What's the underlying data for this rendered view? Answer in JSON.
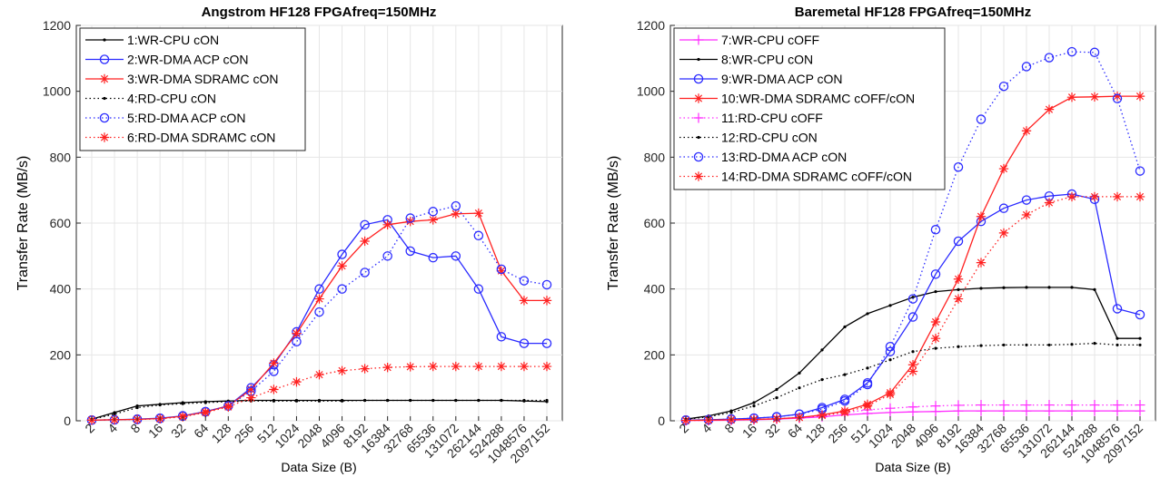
{
  "chart_data": [
    {
      "type": "line",
      "title": "Angstrom HF128 FPGAfreq=150MHz",
      "xlabel": "Data Size (B)",
      "ylabel": "Transfer Rate (MB/s)",
      "ylim": [
        0,
        1200
      ],
      "yticks": [
        0,
        200,
        400,
        600,
        800,
        1000,
        1200
      ],
      "grid": true,
      "legend_position": "top-left",
      "categories": [
        "2",
        "4",
        "8",
        "16",
        "32",
        "64",
        "128",
        "256",
        "512",
        "1024",
        "2048",
        "4096",
        "8192",
        "16384",
        "32768",
        "65536",
        "131072",
        "262144",
        "524288",
        "1048576",
        "2097152"
      ],
      "series": [
        {
          "name": "1:WR-CPU cON",
          "color": "#000000",
          "dash": "solid",
          "marker": "dot",
          "values": [
            5,
            25,
            45,
            50,
            55,
            58,
            60,
            62,
            62,
            62,
            62,
            62,
            62,
            62,
            62,
            62,
            62,
            62,
            62,
            60,
            58
          ]
        },
        {
          "name": "2:WR-DMA ACP cON",
          "color": "#2b2bff",
          "dash": "solid",
          "marker": "circle",
          "values": [
            2,
            3,
            5,
            8,
            15,
            28,
            45,
            100,
            170,
            270,
            400,
            505,
            595,
            610,
            515,
            495,
            500,
            400,
            255,
            235,
            235
          ]
        },
        {
          "name": "3:WR-DMA SDRAMC cON",
          "color": "#ff2020",
          "dash": "solid",
          "marker": "star",
          "values": [
            2,
            3,
            4,
            7,
            14,
            27,
            45,
            95,
            175,
            265,
            370,
            470,
            545,
            595,
            605,
            610,
            628,
            630,
            455,
            365,
            365
          ]
        },
        {
          "name": "4:RD-CPU cON",
          "color": "#000000",
          "dash": "dotted",
          "marker": "dot",
          "values": [
            4,
            20,
            40,
            48,
            52,
            55,
            58,
            60,
            60,
            60,
            60,
            60,
            62,
            62,
            62,
            62,
            62,
            62,
            62,
            62,
            62
          ]
        },
        {
          "name": "5:RD-DMA ACP cON",
          "color": "#2b2bff",
          "dash": "dotted",
          "marker": "circle",
          "values": [
            2,
            3,
            4,
            7,
            14,
            27,
            45,
            90,
            150,
            240,
            330,
            400,
            450,
            500,
            615,
            635,
            652,
            562,
            460,
            425,
            413
          ]
        },
        {
          "name": "6:RD-DMA SDRAMC cON",
          "color": "#ff2020",
          "dash": "dotted",
          "marker": "star",
          "values": [
            2,
            3,
            4,
            6,
            12,
            25,
            42,
            70,
            95,
            118,
            140,
            152,
            158,
            162,
            164,
            165,
            165,
            165,
            165,
            165,
            165
          ]
        }
      ]
    },
    {
      "type": "line",
      "title": "Baremetal HF128 FPGAfreq=150MHz",
      "xlabel": "Data Size (B)",
      "ylabel": "Transfer Rate (MB/s)",
      "ylim": [
        0,
        1200
      ],
      "yticks": [
        0,
        200,
        400,
        600,
        800,
        1000,
        1200
      ],
      "grid": true,
      "legend_position": "top-left",
      "categories": [
        "2",
        "4",
        "8",
        "16",
        "32",
        "64",
        "128",
        "256",
        "512",
        "1024",
        "2048",
        "4096",
        "8192",
        "16384",
        "32768",
        "65536",
        "131072",
        "262144",
        "524288",
        "1048576",
        "2097152"
      ],
      "series": [
        {
          "name": "7:WR-CPU cOFF",
          "color": "#ff2bff",
          "dash": "solid",
          "marker": "plus",
          "values": [
            1,
            1,
            2,
            3,
            5,
            8,
            12,
            18,
            22,
            25,
            27,
            28,
            30,
            30,
            30,
            30,
            30,
            30,
            30,
            30,
            30
          ]
        },
        {
          "name": "8:WR-CPU cON",
          "color": "#000000",
          "dash": "solid",
          "marker": "dot",
          "values": [
            5,
            15,
            30,
            55,
            95,
            145,
            215,
            285,
            325,
            350,
            375,
            392,
            398,
            402,
            404,
            405,
            405,
            405,
            398,
            250,
            250
          ]
        },
        {
          "name": "9:WR-DMA ACP cON",
          "color": "#2b2bff",
          "dash": "solid",
          "marker": "circle",
          "values": [
            2,
            3,
            5,
            8,
            12,
            20,
            40,
            65,
            115,
            210,
            315,
            445,
            545,
            605,
            645,
            670,
            682,
            688,
            672,
            340,
            322
          ]
        },
        {
          "name": "10:WR-DMA SDRAMC cOFF/cON",
          "color": "#ff2020",
          "dash": "solid",
          "marker": "star",
          "values": [
            1,
            2,
            3,
            4,
            6,
            10,
            18,
            30,
            50,
            85,
            170,
            300,
            430,
            620,
            765,
            880,
            945,
            982,
            983,
            985,
            985
          ]
        },
        {
          "name": "11:RD-CPU cOFF",
          "color": "#ff2bff",
          "dash": "dotted",
          "marker": "plus",
          "values": [
            1,
            2,
            3,
            4,
            6,
            10,
            16,
            25,
            33,
            38,
            42,
            45,
            47,
            48,
            48,
            48,
            48,
            48,
            48,
            48,
            48
          ]
        },
        {
          "name": "12:RD-CPU cON",
          "color": "#000000",
          "dash": "dotted",
          "marker": "dot",
          "values": [
            4,
            12,
            25,
            45,
            70,
            100,
            125,
            140,
            160,
            185,
            210,
            220,
            225,
            228,
            230,
            230,
            230,
            232,
            235,
            230,
            230
          ]
        },
        {
          "name": "13:RD-DMA ACP cON",
          "color": "#2b2bff",
          "dash": "dotted",
          "marker": "circle",
          "values": [
            2,
            3,
            5,
            8,
            12,
            20,
            35,
            60,
            110,
            225,
            370,
            580,
            770,
            915,
            1015,
            1075,
            1102,
            1120,
            1118,
            978,
            758
          ]
        },
        {
          "name": "14:RD-DMA SDRAMC cOFF/cON",
          "color": "#ff2020",
          "dash": "dotted",
          "marker": "star",
          "values": [
            1,
            2,
            3,
            4,
            6,
            10,
            16,
            25,
            45,
            80,
            150,
            250,
            370,
            480,
            570,
            625,
            662,
            680,
            680,
            680,
            680
          ]
        }
      ]
    }
  ]
}
